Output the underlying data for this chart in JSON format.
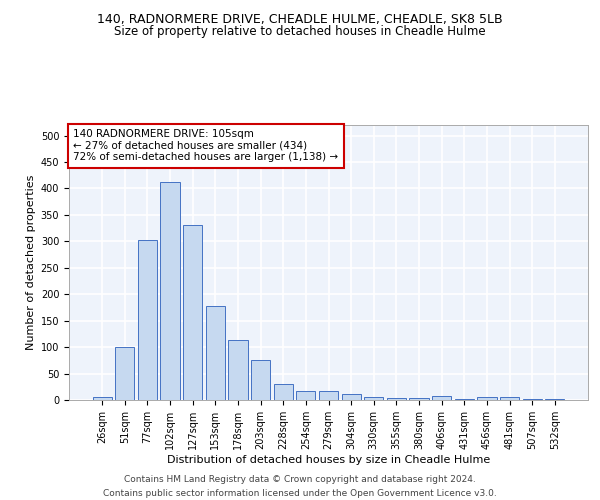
{
  "title_line1": "140, RADNORMERE DRIVE, CHEADLE HULME, CHEADLE, SK8 5LB",
  "title_line2": "Size of property relative to detached houses in Cheadle Hulme",
  "xlabel": "Distribution of detached houses by size in Cheadle Hulme",
  "ylabel": "Number of detached properties",
  "categories": [
    "26sqm",
    "51sqm",
    "77sqm",
    "102sqm",
    "127sqm",
    "153sqm",
    "178sqm",
    "203sqm",
    "228sqm",
    "254sqm",
    "279sqm",
    "304sqm",
    "330sqm",
    "355sqm",
    "380sqm",
    "406sqm",
    "431sqm",
    "456sqm",
    "481sqm",
    "507sqm",
    "532sqm"
  ],
  "values": [
    5,
    100,
    303,
    412,
    330,
    178,
    113,
    76,
    30,
    17,
    17,
    11,
    5,
    4,
    4,
    7,
    1,
    5,
    5,
    2,
    2
  ],
  "bar_color": "#c6d9f0",
  "bar_edge_color": "#4472c4",
  "background_color": "#eef3fb",
  "grid_color": "#ffffff",
  "annotation_text": "140 RADNORMERE DRIVE: 105sqm\n← 27% of detached houses are smaller (434)\n72% of semi-detached houses are larger (1,138) →",
  "annotation_box_color": "#ffffff",
  "annotation_box_edge_color": "#cc0000",
  "property_bar_index": 3,
  "ylim": [
    0,
    520
  ],
  "yticks": [
    0,
    50,
    100,
    150,
    200,
    250,
    300,
    350,
    400,
    450,
    500
  ],
  "footer_text": "Contains HM Land Registry data © Crown copyright and database right 2024.\nContains public sector information licensed under the Open Government Licence v3.0.",
  "title_fontsize": 9,
  "subtitle_fontsize": 8.5,
  "axis_label_fontsize": 8,
  "tick_fontsize": 7,
  "annotation_fontsize": 7.5,
  "footer_fontsize": 6.5
}
